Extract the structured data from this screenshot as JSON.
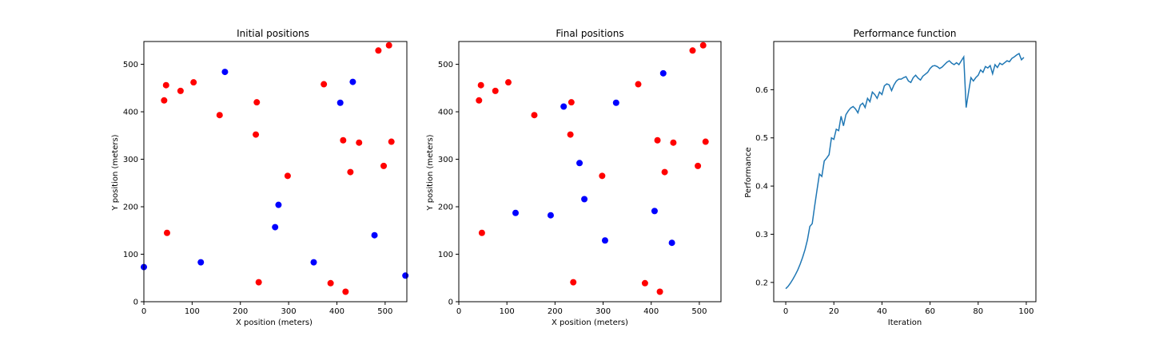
{
  "chart_data": [
    {
      "type": "scatter",
      "title": "Initial positions",
      "xlabel": "X position (meters)",
      "ylabel": "Y position (meters)",
      "xlim": [
        0,
        545
      ],
      "ylim": [
        0,
        548
      ],
      "xticks": [
        0,
        100,
        200,
        300,
        400,
        500
      ],
      "yticks": [
        0,
        100,
        200,
        300,
        400,
        500
      ],
      "grid": false,
      "series": [
        {
          "color": "#ff0000",
          "points": [
            [
              46,
              456
            ],
            [
              42,
              424
            ],
            [
              76,
              444
            ],
            [
              103,
              462
            ],
            [
              157,
              393
            ],
            [
              234,
              420
            ],
            [
              232,
              352
            ],
            [
              298,
              265
            ],
            [
              373,
              458
            ],
            [
              413,
              340
            ],
            [
              446,
              335
            ],
            [
              428,
              273
            ],
            [
              486,
              529
            ],
            [
              508,
              540
            ],
            [
              513,
              337
            ],
            [
              497,
              286
            ],
            [
              48,
              145
            ],
            [
              238,
              41
            ],
            [
              387,
              39
            ],
            [
              418,
              21
            ]
          ]
        },
        {
          "color": "#0000ff",
          "points": [
            [
              168,
              484
            ],
            [
              433,
              463
            ],
            [
              407,
              419
            ],
            [
              279,
              204
            ],
            [
              272,
              157
            ],
            [
              478,
              140
            ],
            [
              118,
              83
            ],
            [
              352,
              83
            ],
            [
              0,
              73
            ],
            [
              542,
              55
            ]
          ]
        }
      ]
    },
    {
      "type": "scatter",
      "title": "Final positions",
      "xlabel": "X position (meters)",
      "ylabel": "Y position (meters)",
      "xlim": [
        0,
        545
      ],
      "ylim": [
        0,
        548
      ],
      "xticks": [
        0,
        100,
        200,
        300,
        400,
        500
      ],
      "yticks": [
        0,
        100,
        200,
        300,
        400,
        500
      ],
      "grid": false,
      "series": [
        {
          "color": "#ff0000",
          "points": [
            [
              46,
              456
            ],
            [
              42,
              424
            ],
            [
              76,
              444
            ],
            [
              103,
              462
            ],
            [
              157,
              393
            ],
            [
              234,
              420
            ],
            [
              232,
              352
            ],
            [
              298,
              265
            ],
            [
              373,
              458
            ],
            [
              413,
              340
            ],
            [
              446,
              335
            ],
            [
              428,
              273
            ],
            [
              486,
              529
            ],
            [
              508,
              540
            ],
            [
              513,
              337
            ],
            [
              497,
              286
            ],
            [
              48,
              145
            ],
            [
              238,
              41
            ],
            [
              387,
              39
            ],
            [
              418,
              21
            ]
          ]
        },
        {
          "color": "#0000ff",
          "points": [
            [
              218,
              411
            ],
            [
              327,
              419
            ],
            [
              425,
              481
            ],
            [
              251,
              292
            ],
            [
              261,
              216
            ],
            [
              118,
              187
            ],
            [
              191,
              182
            ],
            [
              407,
              191
            ],
            [
              304,
              129
            ],
            [
              443,
              124
            ]
          ]
        }
      ]
    },
    {
      "type": "line",
      "title": "Performance function",
      "xlabel": "Iteration",
      "ylabel": "Performance",
      "xlim": [
        -5,
        104
      ],
      "ylim": [
        0.16,
        0.7
      ],
      "xticks": [
        0,
        20,
        40,
        60,
        80,
        100
      ],
      "yticks": [
        0.2,
        0.3,
        0.4,
        0.5,
        0.6
      ],
      "grid": false,
      "series": [
        {
          "color": "#1f77b4",
          "x": [
            0,
            1,
            2,
            3,
            4,
            5,
            6,
            7,
            8,
            9,
            10,
            11,
            12,
            13,
            14,
            15,
            16,
            17,
            18,
            19,
            20,
            21,
            22,
            23,
            24,
            25,
            26,
            27,
            28,
            29,
            30,
            31,
            32,
            33,
            34,
            35,
            36,
            37,
            38,
            39,
            40,
            41,
            42,
            43,
            44,
            45,
            46,
            47,
            48,
            49,
            50,
            51,
            52,
            53,
            54,
            55,
            56,
            57,
            58,
            59,
            60,
            61,
            62,
            63,
            64,
            65,
            66,
            67,
            68,
            69,
            70,
            71,
            72,
            73,
            74,
            75,
            76,
            77,
            78,
            79,
            80,
            81,
            82,
            83,
            84,
            85,
            86,
            87,
            88,
            89,
            90,
            91,
            92,
            93,
            94,
            95,
            96,
            97,
            98,
            99
          ],
          "values": [
            0.187,
            0.192,
            0.199,
            0.207,
            0.216,
            0.226,
            0.238,
            0.252,
            0.268,
            0.288,
            0.316,
            0.322,
            0.358,
            0.392,
            0.425,
            0.42,
            0.452,
            0.458,
            0.465,
            0.5,
            0.497,
            0.518,
            0.515,
            0.545,
            0.525,
            0.548,
            0.556,
            0.562,
            0.565,
            0.56,
            0.552,
            0.568,
            0.572,
            0.563,
            0.582,
            0.575,
            0.595,
            0.59,
            0.582,
            0.595,
            0.59,
            0.608,
            0.612,
            0.61,
            0.598,
            0.61,
            0.618,
            0.622,
            0.622,
            0.625,
            0.627,
            0.618,
            0.615,
            0.625,
            0.63,
            0.624,
            0.62,
            0.628,
            0.632,
            0.636,
            0.644,
            0.649,
            0.65,
            0.648,
            0.644,
            0.647,
            0.652,
            0.657,
            0.66,
            0.655,
            0.652,
            0.656,
            0.652,
            0.66,
            0.668,
            0.563,
            0.595,
            0.625,
            0.618,
            0.625,
            0.63,
            0.641,
            0.636,
            0.648,
            0.645,
            0.65,
            0.633,
            0.652,
            0.646,
            0.655,
            0.652,
            0.656,
            0.66,
            0.658,
            0.665,
            0.668,
            0.672,
            0.675,
            0.662,
            0.667
          ]
        }
      ]
    }
  ]
}
